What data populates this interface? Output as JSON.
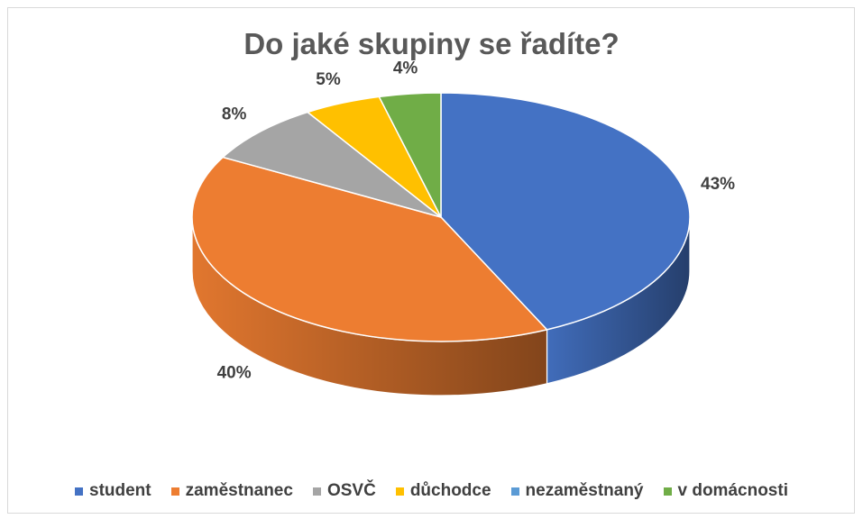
{
  "chart_data": {
    "type": "pie",
    "title": "Do jaké skupiny se řadíte?",
    "categories": [
      "student",
      "zaměstnanec",
      "OSVČ",
      "důchodce",
      "nezaměstnaný",
      "v domácnosti"
    ],
    "values": [
      43,
      40,
      8,
      5,
      0,
      4
    ],
    "labels": [
      "43%",
      "40%",
      "8%",
      "5%",
      "",
      "4%"
    ],
    "colors": [
      "#4472C4",
      "#ED7D31",
      "#A5A5A5",
      "#FFC000",
      "#5B9BD5",
      "#70AD47"
    ],
    "legend_position": "bottom",
    "style": "3d"
  }
}
